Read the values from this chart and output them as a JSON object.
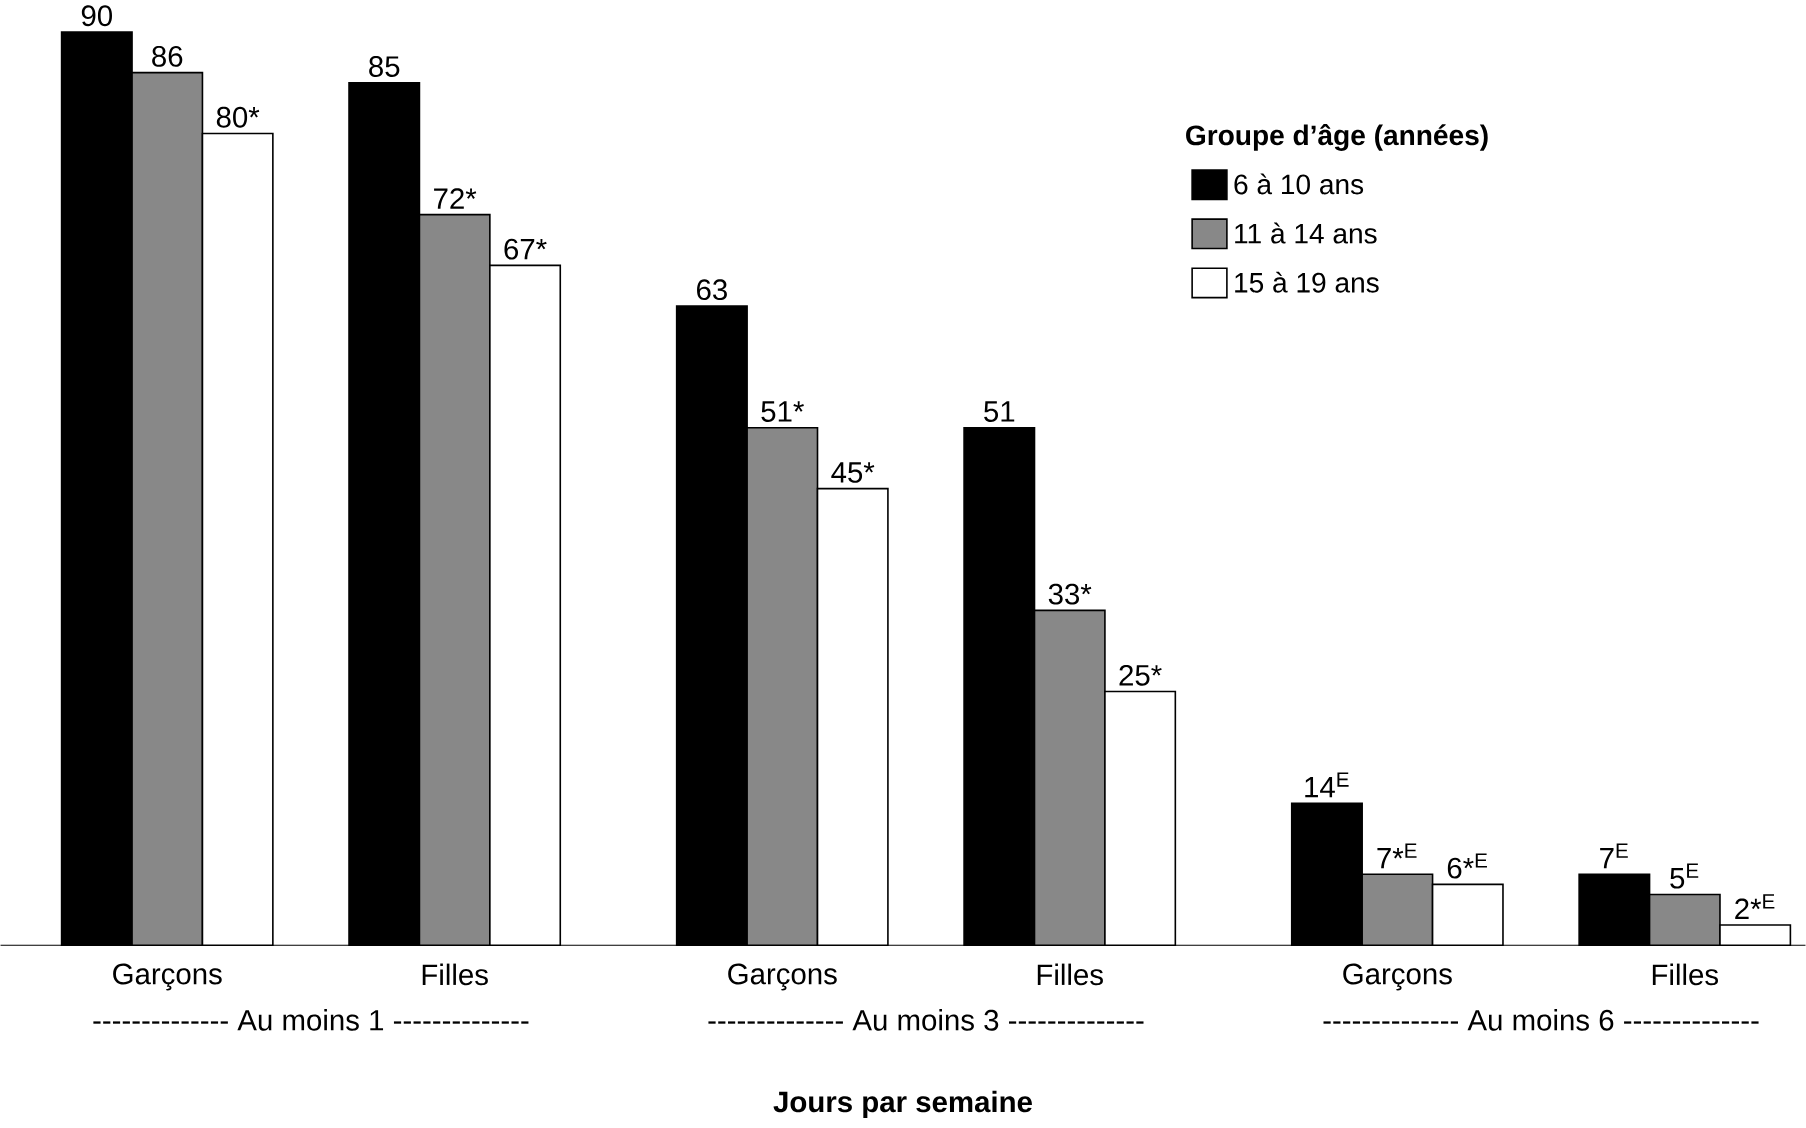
{
  "chart_data": {
    "type": "bar",
    "xlabel": "Jours par semaine",
    "legend_title": "Groupe d’âge (années)",
    "categories": [
      "Garçons",
      "Filles",
      "Garçons",
      "Filles",
      "Garçons",
      "Filles"
    ],
    "series": [
      {
        "name": "6 à 10 ans",
        "color": "#000000",
        "values": [
          90,
          85,
          63,
          51,
          14,
          7
        ],
        "value_labels": [
          "90",
          "85",
          "63",
          "51",
          "14$^{E}$",
          "7$^{E}$"
        ]
      },
      {
        "name": "11 à 14 ans",
        "color": "#888888",
        "values": [
          86,
          72,
          51,
          33,
          7,
          5
        ],
        "value_labels": [
          "86",
          "72*",
          "51*",
          "33*",
          "7*$^{E}$",
          "5$^{E}$"
        ]
      },
      {
        "name": "15 à 19 ans",
        "color": "#ffffff",
        "values": [
          80,
          67,
          45,
          25,
          6,
          2
        ],
        "value_labels": [
          "80*",
          "67*",
          "45*",
          "25*",
          "6*$^{E}$",
          "2*$^{E}$"
        ]
      }
    ],
    "annotations": [
      "-------------- Au moins 1 --------------",
      "-------------- Au moins 3 --------------",
      "-------------- Au moins 6 --------------"
    ],
    "ylim": [
      0,
      90
    ],
    "legend": "top right"
  }
}
